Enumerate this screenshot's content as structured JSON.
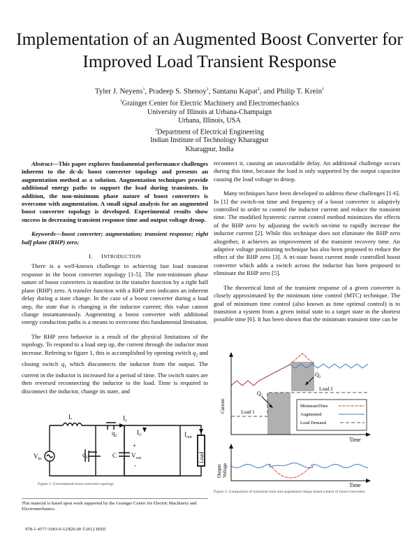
{
  "paper": {
    "title_line1": "Implementation of an Augmented Boost Converter for",
    "title_line2": "Improved Load Transient Response",
    "authors": [
      {
        "name": "Tyler J. Neyens",
        "aff": "1"
      },
      {
        "name": "Pradeep S. Shenoy",
        "aff": "1"
      },
      {
        "name": "Santanu Kapat",
        "aff": "2"
      },
      {
        "name": "Philip T. Krein",
        "aff": "1"
      }
    ],
    "author_sep": ", ",
    "author_and": ", and ",
    "affiliations": [
      {
        "mark": "1",
        "lines": [
          "Grainger Center for Electric Machinery and Electromechanics",
          "University of Illinois at Urbana-Champaign",
          "Urbana, Illinois, USA"
        ]
      },
      {
        "mark": "2",
        "lines": [
          "Department of Electrical Engineering",
          "Indian Institute of Technology Kharagpur",
          "Kharagpur, India"
        ]
      }
    ],
    "abstract_label": "Abstract",
    "abstract_text": "—This paper explores fundamental performance challenges inherent to the dc-dc boost converter topology and presents an augmentation method as a solution. Augmentation techniques provide additional energy paths to support the load during transients. In addition, the non-minimum phase nature of boost converters is overcome with augmentation. A small signal analysis for an augmented boost converter topology is developed. Experimental results show success in decreasing transient response time and output voltage droop.",
    "keywords_label": "Keywords",
    "keywords_text": "—boost converter; augmentation; transient response; right half plane (RHP) zero;",
    "section1_num": "I.",
    "section1_title_first": "I",
    "section1_title_rest": "NTRODUCTION",
    "left_paragraphs": [
      "There is a well-known challenge to achieving fast load transient response in the boost converter topology [1-5]. The non-minimum phase nature of boost converters is manifest in the transfer function by a right half plane (RHP) zero. A transfer function with a RHP zero indicates an inherent delay during a state change. In the case of a boost converter during a load step, the state that is changing is the inductor current; this value cannot change instantaneously. Augmenting a boost converter with additional energy conduction paths is a means to overcome this fundamental limitation."
    ],
    "rhp_para": {
      "t1": "The RHP zero behavior is a result of the physical limitations of the topology. To respond to a load step up, the current through the inductor must increase. Refering to figure 1, this is accomplished by opening switch ",
      "q2": "q",
      "q2_sub": "2",
      "t2": " and closing switch ",
      "q1": "q",
      "q1_sub": "1",
      "t3": " which disconnects the inductor from the output. The current in the inductor is increased for a period of time. The switch states are then reversed reconnecting the inductor to the load. Time is required to disconnect the inductor, change its state, and"
    },
    "right_paragraphs": [
      "reconnect it, causing an unavoidable delay. An additional challenge occurs during this time, because the load is only supported by the output capacitor causing the load voltage to droop.",
      "Many techniques have been developed to address these challenges [1-6]. In [1] the switch-on time and frequency of a boost converter is adaptivly controlled in order to control the inductor current and reduce the transient time. The modified hysteretic current control method minimizes the effects of the RHP zero by adjusting the switch on-time to rapidly increase the inductor current [2]. While this technique does not eliminate the RHP zero altogether, it achieves an improvement of the transient recovery time. An adaptive voltage positioning technique has also been proposed to reduce the effect of the RHP zero [3]. A tri-state boost current mode controlled boost converter which adds a switch across the inductor has been proposed to eliminate the RHP zero [5].",
      "The theoretical limit of the transient response of a given converter is closely approximated by the minimum time control (MTC) technique. The goal of minimum time control (also known as time optimal control) is to transition a system from a given initial state to a target state in the shortest possible time [6]. It has been shown that the minimum transient time can be"
    ],
    "figure1": {
      "labels": {
        "L": "L",
        "I1": "I",
        "I1_sub": "1",
        "q2": "q",
        "q2_sub": "2",
        "q1": "q",
        "q1_sub": "1",
        "Ic": "I",
        "Ic_sub": "C",
        "Iout": "I",
        "Iout_sub": "out",
        "Vin": "V",
        "Vin_sub": "in",
        "C": "C",
        "Vout": "V",
        "Vout_sub": "out",
        "plus": "+",
        "minus": "-",
        "load": "Load"
      },
      "caption": "Figure 1. Conventional boost converter topology"
    },
    "figure2": {
      "current_ylabel": "Current",
      "voltage_ylabel_1": "Output",
      "voltage_ylabel_2": "Voltage",
      "xlabel": "Time",
      "xlabel2": "Time",
      "q1": "Q",
      "q1_sub": "1",
      "q2": "Q",
      "q2_sub": "2",
      "load1": "Load 1",
      "load2": "Load 2",
      "legend": [
        {
          "label": "MinimumTime",
          "color": "#e02020",
          "style": "dash-dot"
        },
        {
          "label": "Augmented",
          "color": "#3a7cc0",
          "style": "solid"
        },
        {
          "label": "Load Demand",
          "color": "#555555",
          "style": "dashed"
        }
      ],
      "shade_color": "#b0b0b0",
      "caption": "Figure 2. Comparison of minimum time and augmented charge based control of boost converters"
    },
    "footnote": "This material is based upon work supported by the Grainger Center for Electric Machinery and Electromechanics.",
    "isbn": "978-1-4577-1683-6/12/$26.00 ©2012 IEEE"
  }
}
